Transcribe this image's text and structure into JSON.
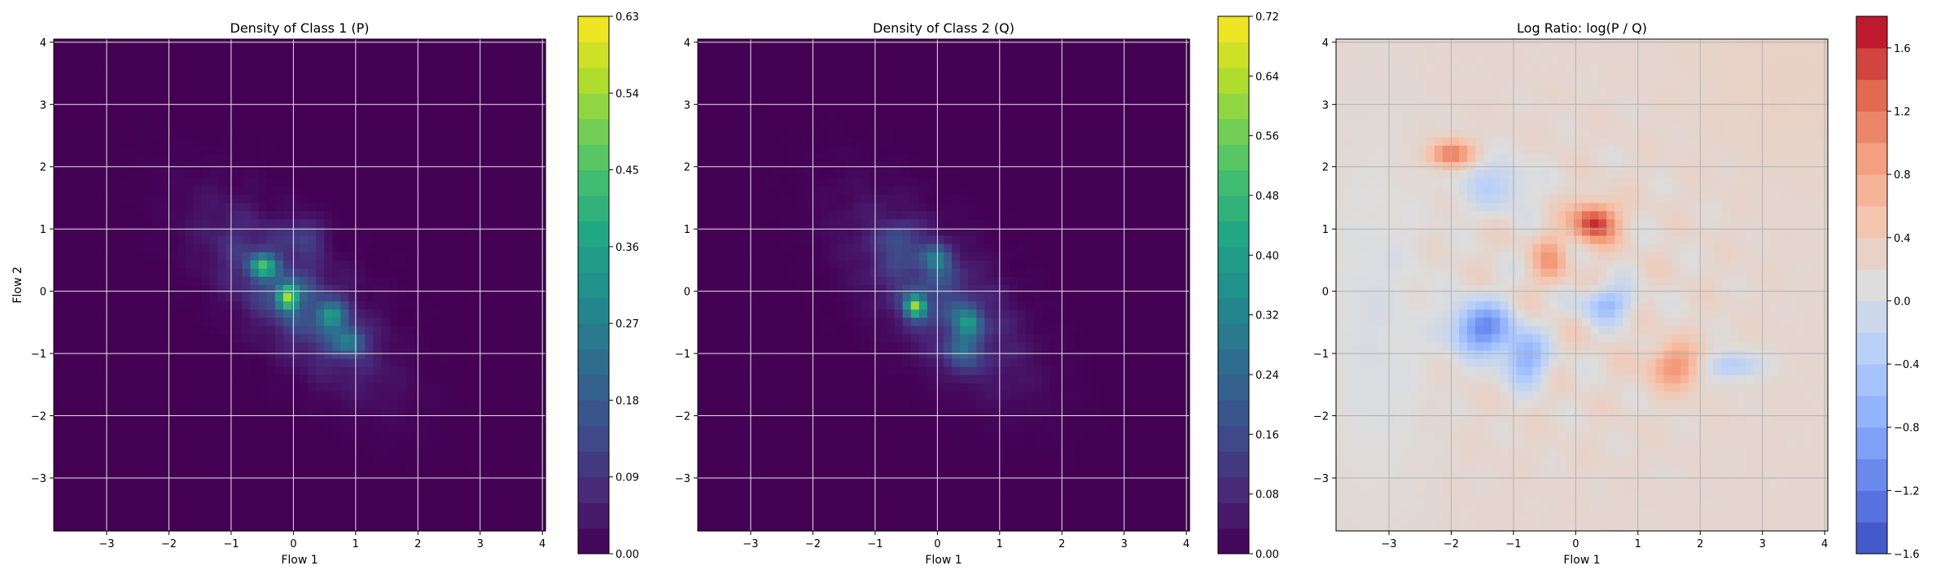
{
  "chart_data": [
    {
      "type": "heatmap",
      "title": "Density of Class 1 (P)",
      "xlabel": "Flow 1",
      "ylabel": "Flow 2",
      "xlim": [
        -3.85,
        4.05
      ],
      "ylim": [
        -3.85,
        4.05
      ],
      "xticks": [
        -3,
        -2,
        -1,
        0,
        1,
        2,
        3,
        4
      ],
      "yticks": [
        -3,
        -2,
        -1,
        0,
        1,
        2,
        3,
        4
      ],
      "xtick_labels": [
        "−3",
        "−2",
        "−1",
        "0",
        "1",
        "2",
        "3",
        "4"
      ],
      "ytick_labels": [
        "−3",
        "−2",
        "−1",
        "0",
        "1",
        "2",
        "3",
        "4"
      ],
      "grid": true,
      "colormap": "viridis",
      "colorbar": {
        "min": 0.0,
        "max": 0.63,
        "ticks": [
          0.0,
          0.09,
          0.18,
          0.27,
          0.36,
          0.45,
          0.54,
          0.63
        ],
        "tick_labels": [
          "0.00",
          "0.09",
          "0.18",
          "0.27",
          "0.36",
          "0.45",
          "0.54",
          "0.63"
        ]
      },
      "peaks": [
        {
          "x": -0.1,
          "y": -0.1,
          "value": 0.6
        },
        {
          "x": -0.5,
          "y": 0.4,
          "value": 0.45
        },
        {
          "x": 0.6,
          "y": -0.4,
          "value": 0.4
        },
        {
          "x": 0.9,
          "y": -0.8,
          "value": 0.35
        },
        {
          "x": 0.2,
          "y": 0.9,
          "value": 0.2
        }
      ]
    },
    {
      "type": "heatmap",
      "title": "Density of Class 2 (Q)",
      "xlabel": "Flow 1",
      "ylabel": "",
      "xlim": [
        -3.85,
        4.05
      ],
      "ylim": [
        -3.85,
        4.05
      ],
      "xticks": [
        -3,
        -2,
        -1,
        0,
        1,
        2,
        3,
        4
      ],
      "yticks": [
        -3,
        -2,
        -1,
        0,
        1,
        2,
        3,
        4
      ],
      "xtick_labels": [
        "−3",
        "−2",
        "−1",
        "0",
        "1",
        "2",
        "3",
        "4"
      ],
      "ytick_labels": [
        "−3",
        "−2",
        "−1",
        "0",
        "1",
        "2",
        "3",
        "4"
      ],
      "grid": true,
      "colormap": "viridis",
      "colorbar": {
        "min": 0.0,
        "max": 0.72,
        "ticks": [
          0.0,
          0.08,
          0.16,
          0.24,
          0.32,
          0.4,
          0.48,
          0.56,
          0.64,
          0.72
        ],
        "tick_labels": [
          "0.00",
          "0.08",
          "0.16",
          "0.24",
          "0.32",
          "0.40",
          "0.48",
          "0.56",
          "0.64",
          "0.72"
        ]
      },
      "peaks": [
        {
          "x": -0.35,
          "y": -0.25,
          "value": 0.7
        },
        {
          "x": 0.5,
          "y": -0.5,
          "value": 0.45
        },
        {
          "x": 0.0,
          "y": 0.5,
          "value": 0.35
        },
        {
          "x": 0.4,
          "y": -1.0,
          "value": 0.3
        },
        {
          "x": -0.6,
          "y": 0.8,
          "value": 0.2
        }
      ]
    },
    {
      "type": "heatmap",
      "title": "Log Ratio: log(P / Q)",
      "xlabel": "Flow 1",
      "ylabel": "",
      "xlim": [
        -3.85,
        4.05
      ],
      "ylim": [
        -3.85,
        4.05
      ],
      "xticks": [
        -3,
        -2,
        -1,
        0,
        1,
        2,
        3,
        4
      ],
      "yticks": [
        -3,
        -2,
        -1,
        0,
        1,
        2,
        3,
        4
      ],
      "xtick_labels": [
        "−3",
        "−2",
        "−1",
        "0",
        "1",
        "2",
        "3",
        "4"
      ],
      "ytick_labels": [
        "−3",
        "−2",
        "−1",
        "0",
        "1",
        "2",
        "3",
        "4"
      ],
      "grid": true,
      "colormap": "coolwarm",
      "colorbar": {
        "min": -1.6,
        "max": 1.8,
        "ticks": [
          -1.6,
          -1.2,
          -0.8,
          -0.4,
          0.0,
          0.4,
          0.8,
          1.2,
          1.6
        ],
        "tick_labels": [
          "−1.6",
          "−1.2",
          "−0.8",
          "−0.4",
          "0.0",
          "0.4",
          "0.8",
          "1.2",
          "1.6"
        ]
      },
      "peaks": [
        {
          "x": 0.3,
          "y": 1.1,
          "value": 1.6
        },
        {
          "x": -2.0,
          "y": 2.2,
          "value": 1.2
        },
        {
          "x": 1.6,
          "y": -1.2,
          "value": 1.0
        },
        {
          "x": -0.4,
          "y": 0.5,
          "value": 0.8
        },
        {
          "x": -1.5,
          "y": -0.6,
          "value": -1.2
        },
        {
          "x": -0.8,
          "y": -1.1,
          "value": -0.9
        },
        {
          "x": 0.5,
          "y": -0.2,
          "value": -0.8
        },
        {
          "x": 2.5,
          "y": -1.2,
          "value": -0.6
        }
      ]
    }
  ]
}
